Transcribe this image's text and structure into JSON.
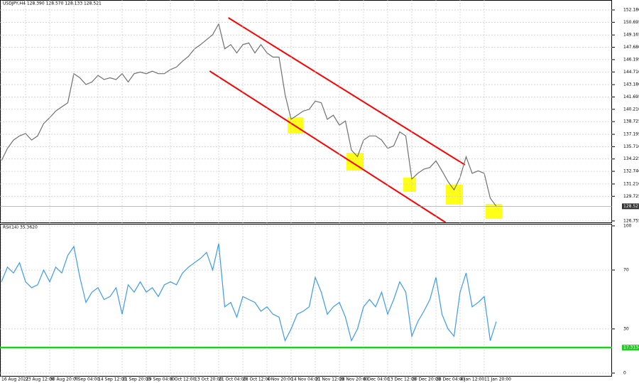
{
  "chart_data": [
    {
      "type": "line",
      "title": "USDJPY,H4 128.390 128.570 128.133 128.521",
      "series": [
        {
          "name": "USDJPY",
          "color": "#707070",
          "values": [
            134.0,
            135.5,
            136.5,
            137.0,
            137.3,
            136.5,
            137.0,
            138.5,
            139.2,
            140.0,
            140.5,
            141.0,
            144.5,
            144.0,
            143.2,
            143.5,
            144.3,
            143.8,
            144.0,
            143.8,
            144.5,
            143.5,
            144.5,
            144.7,
            144.5,
            144.8,
            144.5,
            144.5,
            145.0,
            145.3,
            146.0,
            146.6,
            147.5,
            148.0,
            148.6,
            149.2,
            150.5,
            147.5,
            148.0,
            147.0,
            148.0,
            148.2,
            147.0,
            148.0,
            147.0,
            146.5,
            146.5,
            142.0,
            139.0,
            139.5,
            140.0,
            140.2,
            141.2,
            141.0,
            139.0,
            139.5,
            138.3,
            138.8,
            135.3,
            134.5,
            136.5,
            137.0,
            137.0,
            136.5,
            135.5,
            135.8,
            137.5,
            137.0,
            131.8,
            132.5,
            133.0,
            133.2,
            134.0,
            132.8,
            131.5,
            130.5,
            132.0,
            134.5,
            132.5,
            132.8,
            132.5,
            129.5,
            128.521
          ]
        }
      ],
      "ylim": [
        126.58,
        153.38
      ],
      "yticks": [
        {
          "value": 152.18,
          "label": "152.180"
        },
        150.695,
        149.165,
        {
          "value": 147.68,
          "label": "147.680"
        },
        146.195,
        {
          "value": 144.71,
          "label": "144.710"
        },
        {
          "value": 143.18,
          "label": "143.180"
        },
        141.695,
        {
          "value": 140.21,
          "label": "140.210"
        },
        138.725,
        137.195,
        {
          "value": 135.71,
          "label": "135.710"
        },
        134.225,
        {
          "value": 132.74,
          "label": "132.740"
        },
        {
          "value": 131.21,
          "label": "131.210"
        },
        129.725,
        126.755
      ],
      "trendlines": [
        {
          "color": "#ff0000",
          "x": [
            37.6,
            76.8
          ],
          "y": [
            151.24,
            133.52
          ]
        },
        {
          "color": "#ff0000",
          "x": [
            34.5,
            73.6
          ],
          "y": [
            144.82,
            126.58
          ]
        }
      ],
      "grid": true
    },
    {
      "type": "line",
      "title": "RSI(14) 35.3620",
      "categories": [
        "16 Aug 2022",
        null,
        null,
        null,
        "23 Aug 12:00",
        null,
        null,
        null,
        "30 Aug 20:00",
        null,
        null,
        null,
        "7 Sep 04:00",
        null,
        null,
        null,
        "14 Sep 12:00",
        null,
        null,
        null,
        "21 Sep 20:00",
        null,
        null,
        null,
        "29 Sep 04:00",
        null,
        null,
        null,
        "6 Oct 12:00",
        null,
        null,
        null,
        "13 Oct 20:00",
        null,
        null,
        null,
        "21 Oct 04:00",
        null,
        null,
        null,
        "28 Oct 12:00",
        null,
        null,
        null,
        "4 Nov 20:00",
        null,
        null,
        null,
        "14 Nov 04:00",
        null,
        null,
        null,
        "21 Nov 12:00",
        null,
        null,
        null,
        "28 Nov 20:00",
        null,
        null,
        null,
        "6 Dec 04:00",
        null,
        null,
        null,
        "13 Dec 12:00",
        null,
        null,
        null,
        "20 Dec 20:00",
        null,
        null,
        null,
        "28 Dec 04:00",
        null,
        null,
        null,
        "4 Jan 12:00",
        null,
        null,
        null,
        "11 Jan 20:00",
        null,
        null
      ],
      "series": [
        {
          "name": "RSI(14)",
          "color": "#3d9be9",
          "values": [
            62,
            72,
            68,
            75,
            62,
            58,
            60,
            70,
            62,
            72,
            68,
            80,
            86,
            65,
            48,
            55,
            58,
            50,
            52,
            58,
            40,
            60,
            55,
            62,
            55,
            58,
            52,
            60,
            62,
            60,
            68,
            72,
            75,
            78,
            82,
            70,
            88,
            45,
            48,
            38,
            52,
            50,
            48,
            42,
            45,
            40,
            38,
            22,
            30,
            40,
            42,
            45,
            65,
            55,
            40,
            45,
            48,
            38,
            22,
            30,
            45,
            50,
            45,
            55,
            40,
            50,
            62,
            55,
            25,
            35,
            42,
            50,
            65,
            40,
            30,
            25,
            55,
            68,
            45,
            48,
            52,
            22,
            35
          ]
        }
      ],
      "level": {
        "value": 17.3134,
        "color": "#22cc22"
      },
      "ylim": [
        -2.4,
        101.4
      ],
      "yticks": [
        0,
        30,
        70,
        100
      ],
      "grid": true
    }
  ]
}
